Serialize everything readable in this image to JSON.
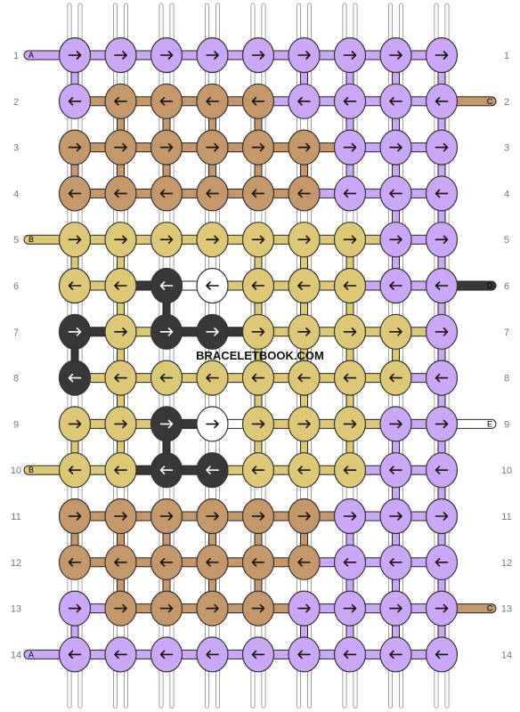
{
  "watermark": "BRACELETBOOK.COM",
  "colors": {
    "A": "#cba7f7",
    "B": "#ddc876",
    "C": "#c5986b",
    "D": "#383838",
    "E": "#ffffff"
  },
  "row_labels": [
    "1",
    "2",
    "3",
    "4",
    "5",
    "6",
    "7",
    "8",
    "9",
    "10",
    "11",
    "12",
    "13",
    "14"
  ],
  "left_stubs": [
    {
      "row": 1,
      "letter": "A",
      "color": "A"
    },
    {
      "row": 5,
      "letter": "B",
      "color": "B"
    },
    {
      "row": 10,
      "letter": "B",
      "color": "B"
    },
    {
      "row": 14,
      "letter": "A",
      "color": "A"
    }
  ],
  "right_stubs": [
    {
      "row": 2,
      "letter": "C",
      "color": "C"
    },
    {
      "row": 6,
      "letter": "D",
      "color": "D"
    },
    {
      "row": 9,
      "letter": "E",
      "color": "E"
    },
    {
      "row": 13,
      "letter": "C",
      "color": "C"
    }
  ],
  "knot_rows": [
    {
      "colors": "AAAAAAAAA",
      "dirs": "RRRRRRRRR"
    },
    {
      "colors": "ACCCCAAAA",
      "dirs": "LLLLLLLLL"
    },
    {
      "colors": "CCCCCCAAA",
      "dirs": "RRRRRRRRR"
    },
    {
      "colors": "CCCCCCAAA",
      "dirs": "LLLLLLLLL"
    },
    {
      "colors": "BBBBBBBAA",
      "dirs": "RRRRRRRRR"
    },
    {
      "colors": "BBDEBBBAA",
      "dirs": "LLLLLLLLL"
    },
    {
      "colors": "DBDDBBBBA",
      "dirs": "RRRRRRRRR"
    },
    {
      "colors": "DBBBBBBBA",
      "dirs": "LLLLLLLLL"
    },
    {
      "colors": "BBDEBBBAA",
      "dirs": "RRRRRRRRR"
    },
    {
      "colors": "BBDDBBBAA",
      "dirs": "LLLLLLLLL"
    },
    {
      "colors": "CCCCCCAAA",
      "dirs": "RRRRRRRRR"
    },
    {
      "colors": "CCCCCCAAA",
      "dirs": "LLLLLLLLL"
    },
    {
      "colors": "ACCCCAAAA",
      "dirs": "RRRRRRRRR"
    },
    {
      "colors": "AAAAAAAAA",
      "dirs": "LLLLLLLLL"
    }
  ]
}
